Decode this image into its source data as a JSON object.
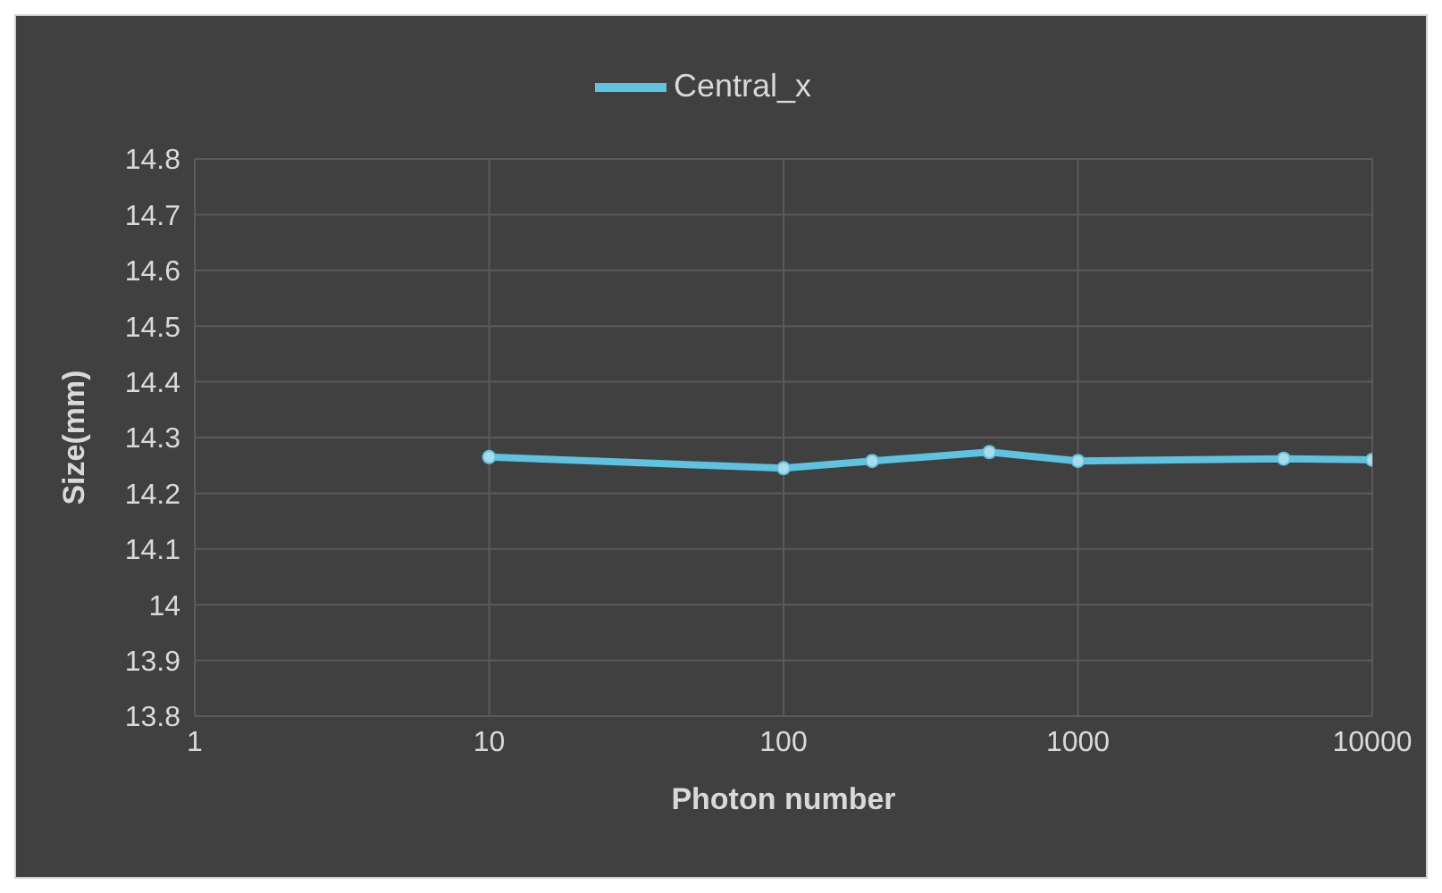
{
  "chart_data": {
    "type": "line",
    "xlabel": "Photon number",
    "ylabel": "Size(mm)",
    "x": [
      10,
      100,
      200,
      500,
      1000,
      5000,
      10000
    ],
    "series": [
      {
        "name": "Central_x",
        "color": "#5ec3e0",
        "values": [
          14.265,
          14.245,
          14.258,
          14.274,
          14.258,
          14.262,
          14.26
        ]
      }
    ],
    "log": "x",
    "xlim": [
      1,
      10000
    ],
    "xticks": [
      1,
      10,
      100,
      1000,
      10000
    ],
    "ylim": [
      13.8,
      14.8
    ],
    "yticks": [
      13.8,
      13.9,
      14,
      14.1,
      14.2,
      14.3,
      14.4,
      14.5,
      14.6,
      14.7,
      14.8
    ],
    "grid": true,
    "legend": "top",
    "marker": "circle",
    "line_style": "solid"
  }
}
